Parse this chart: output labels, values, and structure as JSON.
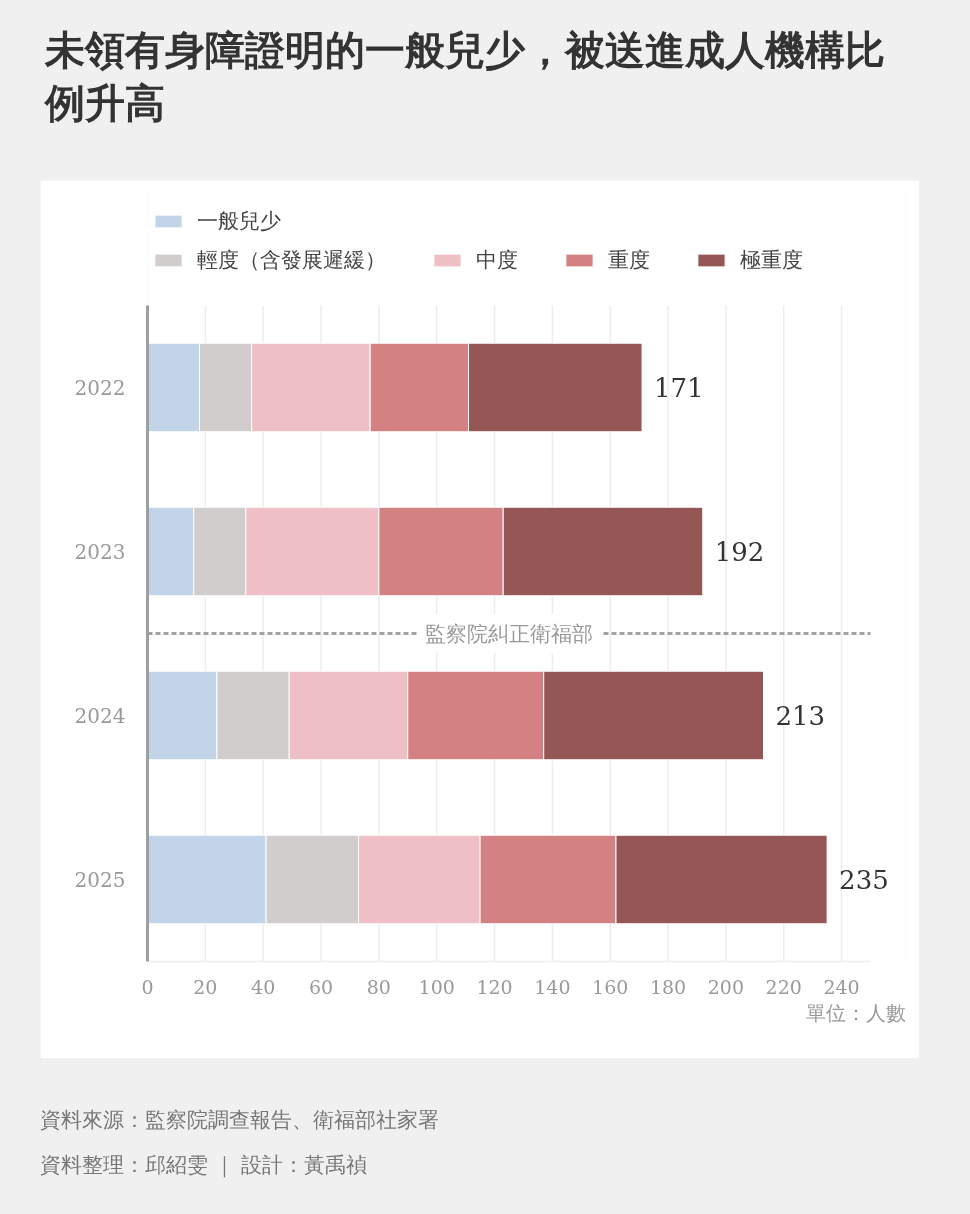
{
  "chart_data": {
    "type": "bar",
    "orientation": "horizontal",
    "stacked": true,
    "title": "未領有身障證明的一般兒少，被送進成人機構比例升高",
    "xlabel": "單位：人數",
    "x": [
      2022,
      2023,
      2024,
      2025
    ],
    "ylim": [
      2025.5,
      2021.5
    ],
    "yticks": [
      2022,
      2023,
      2024,
      2025
    ],
    "series": [
      {
        "name": "一般兒少",
        "color": "#c2d4e8",
        "values": [
          18,
          16,
          24,
          41
        ]
      },
      {
        "name": "輕度（含發展遲緩）",
        "color": "#d1cdcc",
        "values": [
          18,
          18,
          25,
          32
        ]
      },
      {
        "name": "中度",
        "color": "#eebfc5",
        "values": [
          41,
          46,
          41,
          42
        ]
      },
      {
        "name": "重度",
        "color": "#d48184",
        "values": [
          34,
          43,
          47,
          47
        ]
      },
      {
        "name": "極重度",
        "color": "#955656",
        "values": [
          60,
          69,
          76,
          73
        ]
      }
    ],
    "totals": [
      "171",
      "192",
      "213",
      "235"
    ],
    "xlim": [
      0,
      250
    ],
    "xticks": [
      0,
      20,
      40,
      60,
      80,
      100,
      120,
      140,
      160,
      180,
      200,
      220,
      240
    ],
    "grid": "x",
    "legend": "top",
    "ref_lines": [
      {
        "axis": "y",
        "value": 2023.5,
        "label": "監察院糾正衛福部",
        "color": "#a3a3a3",
        "line_style": "dashed"
      }
    ],
    "annotations": [
      "資料來源：監察院調查報告、衛福部社家署",
      "資料整理：邱紹雯 ｜ 設計：黃禹禎"
    ]
  }
}
